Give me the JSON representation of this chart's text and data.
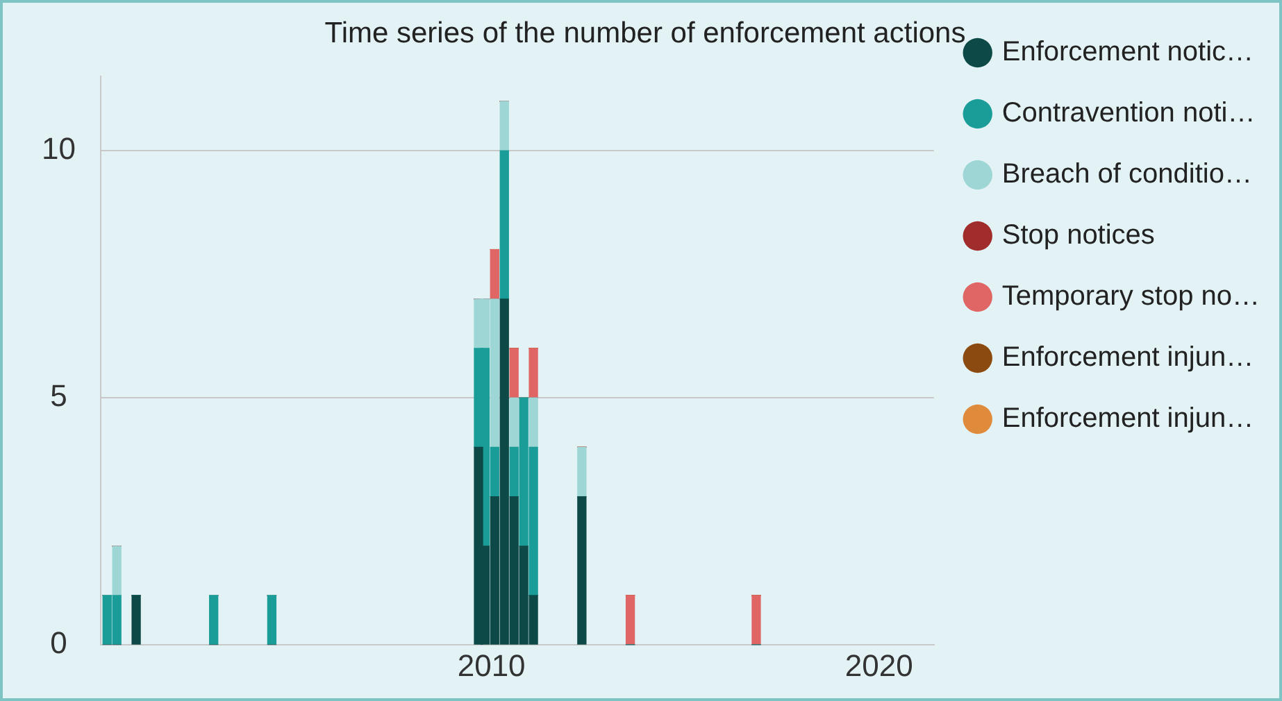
{
  "chart_data": {
    "type": "bar",
    "title": "Time series of the number of enforcement actions",
    "stacked": true,
    "x": [
      "2000-02",
      "2000-05",
      "2000-11",
      "2002-11",
      "2004-05",
      "2009-09",
      "2009-11",
      "2010-02",
      "2010-05",
      "2010-08",
      "2010-11",
      "2011-02",
      "2012-05",
      "2013-08",
      "2016-11"
    ],
    "series": [
      {
        "name": "Enforcement notic…",
        "color": "#0d4a47",
        "values": [
          0,
          0,
          1,
          0,
          0,
          4,
          2,
          3,
          7,
          3,
          2,
          1,
          3,
          0,
          0
        ]
      },
      {
        "name": "Contravention noti…",
        "color": "#1a9c98",
        "values": [
          1,
          1,
          0,
          1,
          1,
          2,
          4,
          1,
          3,
          1,
          3,
          3,
          0,
          0,
          0
        ]
      },
      {
        "name": "Breach of conditio…",
        "color": "#9ed6d6",
        "values": [
          0,
          1,
          0,
          0,
          0,
          1,
          1,
          3,
          1,
          1,
          0,
          1,
          1,
          0,
          0
        ]
      },
      {
        "name": "Stop notices",
        "color": "#a02c2c",
        "values": [
          0,
          0,
          0,
          0,
          0,
          0,
          0,
          0,
          0,
          0,
          0,
          0,
          0,
          0,
          0
        ]
      },
      {
        "name": "Temporary stop no…",
        "color": "#e06666",
        "values": [
          0,
          0,
          0,
          0,
          0,
          0,
          0,
          1,
          0,
          1,
          0,
          1,
          0,
          1,
          1
        ]
      },
      {
        "name": "Enforcement injun…",
        "color": "#8b4a10",
        "values": [
          0,
          0,
          0,
          0,
          0,
          0,
          0,
          0,
          0,
          0,
          0,
          0,
          0,
          0,
          0
        ]
      },
      {
        "name": "Enforcement injun…",
        "color": "#e08a3c",
        "values": [
          0,
          0,
          0,
          0,
          0,
          0,
          0,
          0,
          0,
          0,
          0,
          0,
          0,
          0,
          0
        ]
      }
    ],
    "xlim": [
      "1999-12",
      "2021-06"
    ],
    "xticks": [
      {
        "value": "2010",
        "label": "2010"
      },
      {
        "value": "2020",
        "label": "2020"
      }
    ],
    "ylim": [
      0,
      11.5
    ],
    "yticks": [
      0,
      5,
      10
    ],
    "grid": "y",
    "legend": "right"
  }
}
